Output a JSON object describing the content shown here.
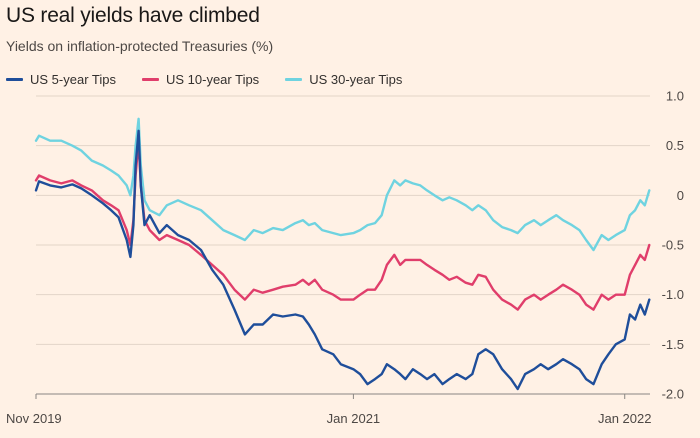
{
  "title": "US real yields have climbed",
  "subtitle": "Yields on inflation-protected Treasuries (%)",
  "chart_data": {
    "type": "line",
    "ylim": [
      -2.0,
      1.0
    ],
    "y_ticks": [
      1.0,
      0.5,
      0,
      -0.5,
      -1.0,
      -1.5,
      -2.0
    ],
    "y_tick_labels": [
      "1.0",
      "0.5",
      "0",
      "-0.5",
      "-1.0",
      "-1.5",
      "-2.0"
    ],
    "x_ticks": [
      "2019-11-01",
      "2021-01-01",
      "2022-01-01"
    ],
    "x_tick_labels": [
      "Nov 2019",
      "Jan 2021",
      "Jan 2022"
    ],
    "xlim": [
      "2019-11-01",
      "2022-02-04"
    ],
    "grid": "horizontal",
    "legend": "top-left",
    "series": [
      {
        "name": "US 5-year Tips",
        "color": "#1f4e9a",
        "points": [
          [
            "2019-11-01",
            0.05
          ],
          [
            "2019-11-05",
            0.14
          ],
          [
            "2019-11-20",
            0.1
          ],
          [
            "2019-12-05",
            0.08
          ],
          [
            "2019-12-20",
            0.11
          ],
          [
            "2020-01-01",
            0.07
          ],
          [
            "2020-01-15",
            0.0
          ],
          [
            "2020-01-30",
            -0.08
          ],
          [
            "2020-02-10",
            -0.15
          ],
          [
            "2020-02-20",
            -0.22
          ],
          [
            "2020-03-02",
            -0.45
          ],
          [
            "2020-03-07",
            -0.62
          ],
          [
            "2020-03-11",
            -0.3
          ],
          [
            "2020-03-14",
            0.3
          ],
          [
            "2020-03-18",
            0.65
          ],
          [
            "2020-03-21",
            0.1
          ],
          [
            "2020-03-26",
            -0.3
          ],
          [
            "2020-04-02",
            -0.2
          ],
          [
            "2020-04-15",
            -0.38
          ],
          [
            "2020-04-25",
            -0.3
          ],
          [
            "2020-05-10",
            -0.4
          ],
          [
            "2020-05-25",
            -0.45
          ],
          [
            "2020-06-10",
            -0.55
          ],
          [
            "2020-06-25",
            -0.75
          ],
          [
            "2020-07-10",
            -0.9
          ],
          [
            "2020-07-25",
            -1.15
          ],
          [
            "2020-08-08",
            -1.4
          ],
          [
            "2020-08-20",
            -1.3
          ],
          [
            "2020-09-01",
            -1.3
          ],
          [
            "2020-09-15",
            -1.2
          ],
          [
            "2020-09-28",
            -1.22
          ],
          [
            "2020-10-15",
            -1.2
          ],
          [
            "2020-10-25",
            -1.22
          ],
          [
            "2020-11-02",
            -1.3
          ],
          [
            "2020-11-10",
            -1.4
          ],
          [
            "2020-11-20",
            -1.55
          ],
          [
            "2020-12-05",
            -1.6
          ],
          [
            "2020-12-15",
            -1.7
          ],
          [
            "2021-01-01",
            -1.75
          ],
          [
            "2021-01-10",
            -1.8
          ],
          [
            "2021-01-20",
            -1.9
          ],
          [
            "2021-01-30",
            -1.85
          ],
          [
            "2021-02-08",
            -1.8
          ],
          [
            "2021-02-15",
            -1.7
          ],
          [
            "2021-02-25",
            -1.75
          ],
          [
            "2021-03-05",
            -1.8
          ],
          [
            "2021-03-12",
            -1.85
          ],
          [
            "2021-03-22",
            -1.75
          ],
          [
            "2021-04-01",
            -1.8
          ],
          [
            "2021-04-10",
            -1.85
          ],
          [
            "2021-04-20",
            -1.8
          ],
          [
            "2021-05-01",
            -1.9
          ],
          [
            "2021-05-10",
            -1.85
          ],
          [
            "2021-05-20",
            -1.8
          ],
          [
            "2021-06-01",
            -1.85
          ],
          [
            "2021-06-10",
            -1.8
          ],
          [
            "2021-06-18",
            -1.6
          ],
          [
            "2021-06-28",
            -1.55
          ],
          [
            "2021-07-08",
            -1.6
          ],
          [
            "2021-07-20",
            -1.75
          ],
          [
            "2021-08-01",
            -1.85
          ],
          [
            "2021-08-10",
            -1.95
          ],
          [
            "2021-08-20",
            -1.8
          ],
          [
            "2021-09-01",
            -1.75
          ],
          [
            "2021-09-10",
            -1.7
          ],
          [
            "2021-09-20",
            -1.75
          ],
          [
            "2021-10-01",
            -1.7
          ],
          [
            "2021-10-10",
            -1.65
          ],
          [
            "2021-10-22",
            -1.7
          ],
          [
            "2021-11-01",
            -1.75
          ],
          [
            "2021-11-10",
            -1.85
          ],
          [
            "2021-11-20",
            -1.9
          ],
          [
            "2021-12-01",
            -1.7
          ],
          [
            "2021-12-10",
            -1.6
          ],
          [
            "2021-12-20",
            -1.5
          ],
          [
            "2022-01-01",
            -1.45
          ],
          [
            "2022-01-08",
            -1.2
          ],
          [
            "2022-01-15",
            -1.25
          ],
          [
            "2022-01-22",
            -1.1
          ],
          [
            "2022-01-28",
            -1.2
          ],
          [
            "2022-02-03",
            -1.05
          ]
        ]
      },
      {
        "name": "US 10-year Tips",
        "color": "#e03e6b",
        "points": [
          [
            "2019-11-01",
            0.15
          ],
          [
            "2019-11-05",
            0.2
          ],
          [
            "2019-11-20",
            0.15
          ],
          [
            "2019-12-05",
            0.12
          ],
          [
            "2019-12-20",
            0.15
          ],
          [
            "2020-01-01",
            0.1
          ],
          [
            "2020-01-15",
            0.05
          ],
          [
            "2020-01-30",
            -0.05
          ],
          [
            "2020-02-10",
            -0.1
          ],
          [
            "2020-02-20",
            -0.15
          ],
          [
            "2020-03-02",
            -0.35
          ],
          [
            "2020-03-07",
            -0.5
          ],
          [
            "2020-03-11",
            -0.25
          ],
          [
            "2020-03-14",
            0.2
          ],
          [
            "2020-03-18",
            0.55
          ],
          [
            "2020-03-21",
            0.1
          ],
          [
            "2020-03-26",
            -0.25
          ],
          [
            "2020-04-02",
            -0.35
          ],
          [
            "2020-04-15",
            -0.45
          ],
          [
            "2020-04-25",
            -0.4
          ],
          [
            "2020-05-10",
            -0.45
          ],
          [
            "2020-05-25",
            -0.5
          ],
          [
            "2020-06-10",
            -0.6
          ],
          [
            "2020-06-25",
            -0.7
          ],
          [
            "2020-07-10",
            -0.8
          ],
          [
            "2020-07-25",
            -0.95
          ],
          [
            "2020-08-08",
            -1.05
          ],
          [
            "2020-08-20",
            -0.95
          ],
          [
            "2020-09-01",
            -0.98
          ],
          [
            "2020-09-15",
            -0.95
          ],
          [
            "2020-09-28",
            -0.92
          ],
          [
            "2020-10-15",
            -0.9
          ],
          [
            "2020-10-25",
            -0.85
          ],
          [
            "2020-11-02",
            -0.9
          ],
          [
            "2020-11-10",
            -0.85
          ],
          [
            "2020-11-20",
            -0.95
          ],
          [
            "2020-12-05",
            -1.0
          ],
          [
            "2020-12-15",
            -1.05
          ],
          [
            "2021-01-01",
            -1.05
          ],
          [
            "2021-01-10",
            -1.0
          ],
          [
            "2021-01-20",
            -0.95
          ],
          [
            "2021-01-30",
            -0.95
          ],
          [
            "2021-02-08",
            -0.85
          ],
          [
            "2021-02-15",
            -0.7
          ],
          [
            "2021-02-25",
            -0.6
          ],
          [
            "2021-03-05",
            -0.7
          ],
          [
            "2021-03-12",
            -0.65
          ],
          [
            "2021-03-22",
            -0.65
          ],
          [
            "2021-04-01",
            -0.65
          ],
          [
            "2021-04-10",
            -0.7
          ],
          [
            "2021-04-20",
            -0.75
          ],
          [
            "2021-05-01",
            -0.8
          ],
          [
            "2021-05-10",
            -0.85
          ],
          [
            "2021-05-20",
            -0.82
          ],
          [
            "2021-06-01",
            -0.88
          ],
          [
            "2021-06-10",
            -0.9
          ],
          [
            "2021-06-18",
            -0.8
          ],
          [
            "2021-06-28",
            -0.82
          ],
          [
            "2021-07-08",
            -0.95
          ],
          [
            "2021-07-20",
            -1.05
          ],
          [
            "2021-08-01",
            -1.1
          ],
          [
            "2021-08-10",
            -1.15
          ],
          [
            "2021-08-20",
            -1.05
          ],
          [
            "2021-09-01",
            -1.0
          ],
          [
            "2021-09-10",
            -1.05
          ],
          [
            "2021-09-20",
            -1.0
          ],
          [
            "2021-10-01",
            -0.95
          ],
          [
            "2021-10-10",
            -0.9
          ],
          [
            "2021-10-22",
            -0.95
          ],
          [
            "2021-11-01",
            -1.0
          ],
          [
            "2021-11-10",
            -1.1
          ],
          [
            "2021-11-20",
            -1.15
          ],
          [
            "2021-12-01",
            -1.0
          ],
          [
            "2021-12-10",
            -1.05
          ],
          [
            "2021-12-20",
            -1.0
          ],
          [
            "2022-01-01",
            -1.0
          ],
          [
            "2022-01-08",
            -0.8
          ],
          [
            "2022-01-15",
            -0.7
          ],
          [
            "2022-01-22",
            -0.6
          ],
          [
            "2022-01-28",
            -0.65
          ],
          [
            "2022-02-03",
            -0.5
          ]
        ]
      },
      {
        "name": "US 30-year Tips",
        "color": "#6fd3e0",
        "points": [
          [
            "2019-11-01",
            0.55
          ],
          [
            "2019-11-05",
            0.6
          ],
          [
            "2019-11-20",
            0.55
          ],
          [
            "2019-12-05",
            0.55
          ],
          [
            "2019-12-20",
            0.5
          ],
          [
            "2020-01-01",
            0.45
          ],
          [
            "2020-01-15",
            0.35
          ],
          [
            "2020-01-30",
            0.3
          ],
          [
            "2020-02-10",
            0.25
          ],
          [
            "2020-02-20",
            0.2
          ],
          [
            "2020-03-02",
            0.1
          ],
          [
            "2020-03-07",
            0.0
          ],
          [
            "2020-03-11",
            0.2
          ],
          [
            "2020-03-14",
            0.5
          ],
          [
            "2020-03-18",
            0.77
          ],
          [
            "2020-03-21",
            0.3
          ],
          [
            "2020-03-26",
            -0.05
          ],
          [
            "2020-04-02",
            -0.15
          ],
          [
            "2020-04-15",
            -0.2
          ],
          [
            "2020-04-25",
            -0.1
          ],
          [
            "2020-05-10",
            -0.05
          ],
          [
            "2020-05-25",
            -0.1
          ],
          [
            "2020-06-10",
            -0.15
          ],
          [
            "2020-06-25",
            -0.25
          ],
          [
            "2020-07-10",
            -0.35
          ],
          [
            "2020-07-25",
            -0.4
          ],
          [
            "2020-08-08",
            -0.45
          ],
          [
            "2020-08-20",
            -0.35
          ],
          [
            "2020-09-01",
            -0.38
          ],
          [
            "2020-09-15",
            -0.33
          ],
          [
            "2020-09-28",
            -0.35
          ],
          [
            "2020-10-15",
            -0.28
          ],
          [
            "2020-10-25",
            -0.25
          ],
          [
            "2020-11-02",
            -0.3
          ],
          [
            "2020-11-10",
            -0.28
          ],
          [
            "2020-11-20",
            -0.35
          ],
          [
            "2020-12-05",
            -0.38
          ],
          [
            "2020-12-15",
            -0.4
          ],
          [
            "2021-01-01",
            -0.38
          ],
          [
            "2021-01-10",
            -0.35
          ],
          [
            "2021-01-20",
            -0.3
          ],
          [
            "2021-01-30",
            -0.28
          ],
          [
            "2021-02-08",
            -0.2
          ],
          [
            "2021-02-15",
            0.0
          ],
          [
            "2021-02-25",
            0.15
          ],
          [
            "2021-03-05",
            0.1
          ],
          [
            "2021-03-12",
            0.15
          ],
          [
            "2021-03-22",
            0.12
          ],
          [
            "2021-04-01",
            0.1
          ],
          [
            "2021-04-10",
            0.05
          ],
          [
            "2021-04-20",
            0.0
          ],
          [
            "2021-05-01",
            -0.05
          ],
          [
            "2021-05-10",
            -0.02
          ],
          [
            "2021-05-20",
            -0.05
          ],
          [
            "2021-06-01",
            -0.1
          ],
          [
            "2021-06-10",
            -0.15
          ],
          [
            "2021-06-18",
            -0.1
          ],
          [
            "2021-06-28",
            -0.15
          ],
          [
            "2021-07-08",
            -0.25
          ],
          [
            "2021-07-20",
            -0.32
          ],
          [
            "2021-08-01",
            -0.35
          ],
          [
            "2021-08-10",
            -0.38
          ],
          [
            "2021-08-20",
            -0.3
          ],
          [
            "2021-09-01",
            -0.25
          ],
          [
            "2021-09-10",
            -0.3
          ],
          [
            "2021-09-20",
            -0.25
          ],
          [
            "2021-10-01",
            -0.2
          ],
          [
            "2021-10-10",
            -0.25
          ],
          [
            "2021-10-22",
            -0.3
          ],
          [
            "2021-11-01",
            -0.35
          ],
          [
            "2021-11-10",
            -0.45
          ],
          [
            "2021-11-20",
            -0.55
          ],
          [
            "2021-12-01",
            -0.4
          ],
          [
            "2021-12-10",
            -0.45
          ],
          [
            "2021-12-20",
            -0.4
          ],
          [
            "2022-01-01",
            -0.35
          ],
          [
            "2022-01-08",
            -0.2
          ],
          [
            "2022-01-15",
            -0.15
          ],
          [
            "2022-01-22",
            -0.05
          ],
          [
            "2022-01-28",
            -0.1
          ],
          [
            "2022-02-03",
            0.05
          ]
        ]
      }
    ]
  }
}
